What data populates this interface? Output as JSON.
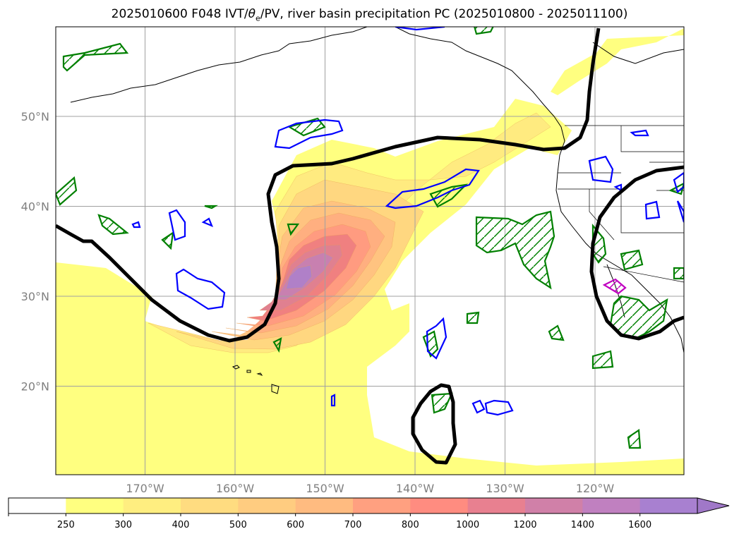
{
  "title": {
    "prefix": "2025010600 F048 IVT/",
    "theta": "θ",
    "theta_sub": "e",
    "suffix": "/PV, river basin precipitation PC (2025010800 - 2025011100)"
  },
  "map": {
    "lon_ticks": [
      {
        "lon": -170,
        "label": "170°W"
      },
      {
        "lon": -160,
        "label": "160°W"
      },
      {
        "lon": -150,
        "label": "150°W"
      },
      {
        "lon": -140,
        "label": "140°W"
      },
      {
        "lon": -130,
        "label": "130°W"
      },
      {
        "lon": -120,
        "label": "120°W"
      }
    ],
    "lat_ticks": [
      {
        "lat": 50,
        "label": "50°N"
      },
      {
        "lat": 40,
        "label": "40°N"
      },
      {
        "lat": 30,
        "label": "30°N"
      },
      {
        "lat": 20,
        "label": "20°N"
      }
    ],
    "colors": {
      "ivt_fill_levels": [
        "#ffff80",
        "#ffeb80",
        "#ffd780",
        "#ffc380",
        "#ffaf80",
        "#ff9b80",
        "#f08080",
        "#e08090",
        "#c880b0",
        "#b080c8"
      ],
      "pv_contour": "#000000",
      "theta_e_contour": "#0000ff",
      "precip_contour": "#008000",
      "precip_high_contour": "#c000c0"
    }
  },
  "colorbar": {
    "ticks": [
      "250",
      "300",
      "400",
      "500",
      "600",
      "700",
      "800",
      "1000",
      "1200",
      "1400",
      "1600"
    ],
    "colors": [
      "#ffffff",
      "#ffff80",
      "#ffee80",
      "#ffdc80",
      "#ffcc80",
      "#ffbb80",
      "#ffa080",
      "#ff8c80",
      "#e88090",
      "#d080a8",
      "#c080c0",
      "#a880d0"
    ],
    "extend": "max"
  }
}
